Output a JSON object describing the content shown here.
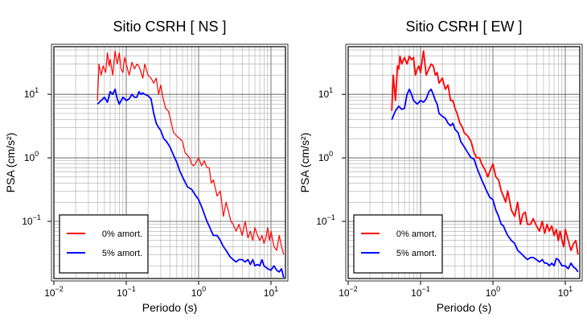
{
  "chart_data": [
    {
      "type": "line",
      "title": "Sitio CSRH [ NS ]",
      "xlabel": "Periodo (s)",
      "ylabel": "PSA (cm/s²)",
      "xscale": "log",
      "yscale": "log",
      "xlim": [
        0.01,
        15.85
      ],
      "ylim": [
        0.0126,
        56.2
      ],
      "xticks": [
        {
          "value": 0.01,
          "base": "10",
          "exp": "−2"
        },
        {
          "value": 0.1,
          "base": "10",
          "exp": "−1"
        },
        {
          "value": 1,
          "base": "10",
          "exp": "0"
        },
        {
          "value": 10,
          "base": "10",
          "exp": "1"
        }
      ],
      "yticks": [
        {
          "value": 0.1,
          "base": "10",
          "exp": "−1"
        },
        {
          "value": 1,
          "base": "10",
          "exp": "0"
        },
        {
          "value": 10,
          "base": "10",
          "exp": "1"
        }
      ],
      "grid": true,
      "legend_position": "bottom-left",
      "series": [
        {
          "name": "0% amort.",
          "color": "#ff0000",
          "width": 1.2,
          "x": [
            0.04,
            0.042,
            0.045,
            0.048,
            0.05,
            0.052,
            0.055,
            0.058,
            0.06,
            0.065,
            0.07,
            0.075,
            0.08,
            0.085,
            0.09,
            0.095,
            0.1,
            0.11,
            0.12,
            0.13,
            0.14,
            0.15,
            0.16,
            0.17,
            0.18,
            0.2,
            0.22,
            0.24,
            0.26,
            0.28,
            0.3,
            0.32,
            0.35,
            0.38,
            0.4,
            0.45,
            0.5,
            0.55,
            0.6,
            0.65,
            0.7,
            0.75,
            0.8,
            0.85,
            0.9,
            0.95,
            1.0,
            1.1,
            1.2,
            1.3,
            1.4,
            1.5,
            1.6,
            1.8,
            2.0,
            2.2,
            2.4,
            2.6,
            2.8,
            3.0,
            3.3,
            3.6,
            4.0,
            4.4,
            4.8,
            5.2,
            5.6,
            6.0,
            6.5,
            7.0,
            7.5,
            8.0,
            8.5,
            9.0,
            9.5,
            10,
            11,
            12,
            13,
            14,
            15
          ],
          "y": [
            8,
            30,
            20,
            28,
            25,
            22,
            45,
            28,
            36,
            20,
            48,
            30,
            45,
            25,
            22,
            38,
            30,
            20,
            32,
            25,
            30,
            28,
            22,
            18,
            30,
            20,
            18,
            15,
            18,
            10,
            14,
            9,
            6,
            5.5,
            4.5,
            2.5,
            2.2,
            2.0,
            1.8,
            1.2,
            1.1,
            1.0,
            0.8,
            0.75,
            0.8,
            0.9,
            1.0,
            0.75,
            0.9,
            0.7,
            0.7,
            0.4,
            0.45,
            0.25,
            0.3,
            0.12,
            0.2,
            0.14,
            0.1,
            0.09,
            0.07,
            0.09,
            0.06,
            0.1,
            0.055,
            0.07,
            0.05,
            0.08,
            0.06,
            0.05,
            0.06,
            0.045,
            0.055,
            0.08,
            0.05,
            0.07,
            0.04,
            0.035,
            0.06,
            0.04,
            0.03
          ]
        },
        {
          "name": "5% amort.",
          "color": "#0000ff",
          "width": 1.8,
          "x": [
            0.04,
            0.045,
            0.05,
            0.055,
            0.06,
            0.065,
            0.07,
            0.075,
            0.08,
            0.09,
            0.1,
            0.11,
            0.12,
            0.13,
            0.14,
            0.15,
            0.16,
            0.17,
            0.18,
            0.2,
            0.22,
            0.24,
            0.26,
            0.28,
            0.3,
            0.33,
            0.36,
            0.4,
            0.45,
            0.5,
            0.55,
            0.6,
            0.7,
            0.8,
            0.9,
            1.0,
            1.1,
            1.2,
            1.3,
            1.4,
            1.5,
            1.6,
            1.8,
            2.0,
            2.2,
            2.4,
            2.7,
            3.0,
            3.3,
            3.6,
            4.0,
            4.4,
            4.8,
            5.2,
            5.6,
            6.0,
            6.5,
            7.0,
            7.5,
            8.0,
            9.0,
            10,
            11,
            12,
            13,
            14,
            15
          ],
          "y": [
            7,
            8,
            9,
            7.5,
            11,
            10,
            12,
            8.5,
            7,
            9,
            8,
            8.5,
            10,
            9,
            9,
            11,
            10,
            10.5,
            10,
            9.5,
            8.5,
            5,
            3.5,
            3.0,
            2.7,
            2.0,
            1.8,
            1.5,
            1.1,
            0.85,
            0.62,
            0.5,
            0.35,
            0.32,
            0.26,
            0.22,
            0.17,
            0.13,
            0.1,
            0.085,
            0.07,
            0.06,
            0.06,
            0.05,
            0.04,
            0.035,
            0.028,
            0.025,
            0.023,
            0.025,
            0.025,
            0.023,
            0.025,
            0.021,
            0.025,
            0.02,
            0.021,
            0.02,
            0.025,
            0.02,
            0.018,
            0.017,
            0.02,
            0.017,
            0.016,
            0.018,
            0.013
          ]
        }
      ]
    },
    {
      "type": "line",
      "title": "Sitio CSRH [ EW ]",
      "xlabel": "Periodo (s)",
      "ylabel": "PSA (cm/s²)",
      "xscale": "log",
      "yscale": "log",
      "xlim": [
        0.01,
        15.85
      ],
      "ylim": [
        0.0126,
        56.2
      ],
      "xticks": [
        {
          "value": 0.01,
          "base": "10",
          "exp": "−2"
        },
        {
          "value": 0.1,
          "base": "10",
          "exp": "−1"
        },
        {
          "value": 1,
          "base": "10",
          "exp": "0"
        },
        {
          "value": 10,
          "base": "10",
          "exp": "1"
        }
      ],
      "yticks": [
        {
          "value": 0.1,
          "base": "10",
          "exp": "−1"
        },
        {
          "value": 1,
          "base": "10",
          "exp": "0"
        },
        {
          "value": 10,
          "base": "10",
          "exp": "1"
        }
      ],
      "grid": true,
      "legend_position": "bottom-left",
      "series": [
        {
          "name": "0% amort.",
          "color": "#ff0000",
          "width": 1.8,
          "x": [
            0.04,
            0.042,
            0.045,
            0.048,
            0.05,
            0.052,
            0.055,
            0.058,
            0.06,
            0.065,
            0.07,
            0.075,
            0.08,
            0.085,
            0.09,
            0.095,
            0.1,
            0.11,
            0.12,
            0.13,
            0.14,
            0.15,
            0.16,
            0.17,
            0.18,
            0.2,
            0.22,
            0.24,
            0.26,
            0.28,
            0.3,
            0.32,
            0.35,
            0.38,
            0.4,
            0.45,
            0.5,
            0.55,
            0.6,
            0.65,
            0.7,
            0.75,
            0.8,
            0.85,
            0.9,
            0.95,
            1.0,
            1.1,
            1.2,
            1.3,
            1.4,
            1.5,
            1.6,
            1.8,
            2.0,
            2.2,
            2.4,
            2.6,
            2.8,
            3.0,
            3.3,
            3.6,
            4.0,
            4.4,
            4.8,
            5.2,
            5.6,
            6.0,
            6.5,
            7.0,
            7.5,
            8.0,
            8.5,
            9.0,
            9.5,
            10,
            11,
            12,
            13,
            14,
            15
          ],
          "y": [
            5.5,
            20,
            8,
            28,
            25,
            40,
            30,
            35,
            38,
            30,
            40,
            35,
            38,
            20,
            25,
            28,
            22,
            48,
            20,
            25,
            30,
            28,
            20,
            22,
            15,
            18,
            12,
            14,
            8,
            8,
            6,
            5,
            3.5,
            3.0,
            2.5,
            2.2,
            1.8,
            1.2,
            1.0,
            1.0,
            0.8,
            0.7,
            0.6,
            0.5,
            0.6,
            0.7,
            0.8,
            0.5,
            0.45,
            0.3,
            0.25,
            0.2,
            0.3,
            0.15,
            0.12,
            0.2,
            0.09,
            0.13,
            0.14,
            0.09,
            0.09,
            0.11,
            0.085,
            0.07,
            0.1,
            0.065,
            0.09,
            0.07,
            0.085,
            0.06,
            0.075,
            0.05,
            0.07,
            0.05,
            0.04,
            0.075,
            0.05,
            0.035,
            0.045,
            0.05,
            0.03
          ]
        },
        {
          "name": "5% amort.",
          "color": "#0000ff",
          "width": 1.8,
          "x": [
            0.04,
            0.045,
            0.05,
            0.055,
            0.06,
            0.065,
            0.07,
            0.075,
            0.08,
            0.09,
            0.1,
            0.11,
            0.12,
            0.13,
            0.14,
            0.15,
            0.16,
            0.17,
            0.18,
            0.2,
            0.22,
            0.24,
            0.26,
            0.28,
            0.3,
            0.33,
            0.36,
            0.4,
            0.45,
            0.5,
            0.55,
            0.6,
            0.7,
            0.8,
            0.9,
            1.0,
            1.1,
            1.2,
            1.3,
            1.4,
            1.5,
            1.6,
            1.8,
            2.0,
            2.2,
            2.4,
            2.7,
            3.0,
            3.3,
            3.6,
            4.0,
            4.4,
            4.8,
            5.2,
            5.6,
            6.0,
            6.5,
            7.0,
            7.5,
            8.0,
            9.0,
            10,
            11,
            12,
            13,
            14,
            15
          ],
          "y": [
            4,
            5.5,
            6.5,
            5.8,
            6,
            10,
            12,
            10,
            8,
            7,
            8,
            7.5,
            8.5,
            11,
            12,
            10,
            8,
            7,
            5,
            4.5,
            4.2,
            3.5,
            3.2,
            3.5,
            2.8,
            2.5,
            1.8,
            1.5,
            1.2,
            1.0,
            0.95,
            0.7,
            0.45,
            0.32,
            0.24,
            0.22,
            0.15,
            0.12,
            0.09,
            0.085,
            0.07,
            0.06,
            0.05,
            0.045,
            0.035,
            0.032,
            0.028,
            0.025,
            0.027,
            0.027,
            0.025,
            0.023,
            0.025,
            0.022,
            0.022,
            0.02,
            0.022,
            0.02,
            0.026,
            0.025,
            0.02,
            0.02,
            0.018,
            0.022,
            0.019,
            0.018,
            0.016
          ]
        }
      ]
    }
  ]
}
